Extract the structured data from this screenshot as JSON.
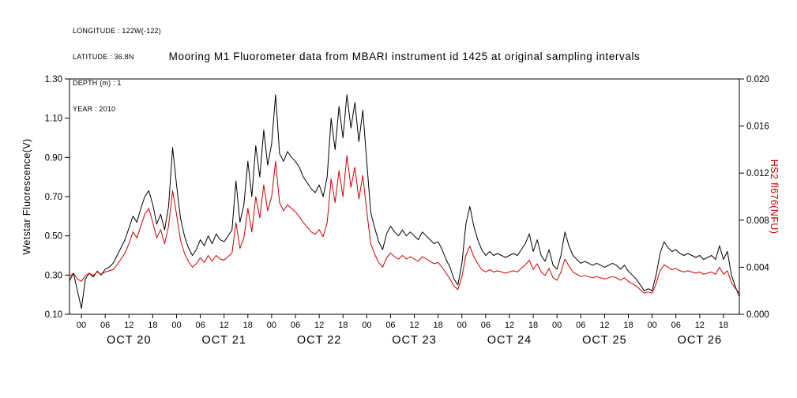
{
  "header": {
    "lines": [
      "LONGITUDE : 122W(-122)",
      "LATITUDE : 36.8N",
      "DEPTH (m) : 1",
      "YEAR : 2010"
    ]
  },
  "chart_data": {
    "type": "line",
    "title": "Mooring M1 Fluorometer data from MBARI instrument id 1425 at original sampling intervals",
    "x_axis": {
      "unit": "hours since OCT 20 00:00",
      "min": -3,
      "max": 166,
      "major_tick_step_hours": 6,
      "tick_label_cycle": [
        "00",
        "06",
        "12",
        "18"
      ],
      "first_tick_hour": 0,
      "last_tick_hour": 162,
      "day_labels": [
        {
          "label": "OCT 20",
          "hour": 12
        },
        {
          "label": "OCT 21",
          "hour": 36
        },
        {
          "label": "OCT 22",
          "hour": 60
        },
        {
          "label": "OCT 23",
          "hour": 84
        },
        {
          "label": "OCT 24",
          "hour": 108
        },
        {
          "label": "OCT 25",
          "hour": 132
        },
        {
          "label": "OCT 26",
          "hour": 156
        }
      ]
    },
    "y_left": {
      "label": "Wetstar Fluorescence(V)",
      "min": 0.1,
      "max": 1.3,
      "ticks": [
        "1.30",
        "1.10",
        "0.90",
        "0.70",
        "0.50",
        "0.30",
        "0.10"
      ],
      "color": "#000000"
    },
    "y_right": {
      "label": "HS2 fl676(NFU)",
      "min": 0.0,
      "max": 0.02,
      "ticks": [
        "0.020",
        "0.016",
        "0.012",
        "0.008",
        "0.004",
        "0.000"
      ],
      "color": "#cc0000"
    },
    "grid": false,
    "legend": "none",
    "series": [
      {
        "name": "Wetstar Fluorescence (V)",
        "axis": "left",
        "color": "#000000",
        "x_start_hour": -3,
        "x_step_hours": 1,
        "values": [
          0.27,
          0.31,
          0.22,
          0.13,
          0.28,
          0.31,
          0.29,
          0.32,
          0.3,
          0.33,
          0.34,
          0.36,
          0.4,
          0.44,
          0.48,
          0.54,
          0.6,
          0.57,
          0.64,
          0.7,
          0.73,
          0.66,
          0.56,
          0.61,
          0.53,
          0.65,
          0.95,
          0.76,
          0.59,
          0.5,
          0.44,
          0.4,
          0.43,
          0.48,
          0.45,
          0.5,
          0.46,
          0.51,
          0.48,
          0.47,
          0.5,
          0.53,
          0.78,
          0.57,
          0.66,
          0.88,
          0.7,
          0.96,
          0.8,
          1.04,
          0.86,
          0.97,
          1.22,
          0.92,
          0.88,
          0.93,
          0.9,
          0.88,
          0.85,
          0.8,
          0.77,
          0.74,
          0.72,
          0.76,
          0.7,
          0.8,
          1.1,
          0.94,
          1.16,
          1.0,
          1.22,
          1.05,
          1.18,
          0.98,
          1.14,
          0.88,
          0.62,
          0.54,
          0.47,
          0.43,
          0.51,
          0.55,
          0.52,
          0.5,
          0.53,
          0.5,
          0.52,
          0.5,
          0.48,
          0.52,
          0.5,
          0.48,
          0.46,
          0.47,
          0.43,
          0.38,
          0.34,
          0.28,
          0.25,
          0.36,
          0.56,
          0.65,
          0.55,
          0.48,
          0.43,
          0.4,
          0.42,
          0.4,
          0.41,
          0.4,
          0.39,
          0.4,
          0.41,
          0.4,
          0.43,
          0.46,
          0.51,
          0.42,
          0.48,
          0.4,
          0.37,
          0.43,
          0.35,
          0.33,
          0.4,
          0.52,
          0.45,
          0.4,
          0.38,
          0.36,
          0.37,
          0.36,
          0.35,
          0.36,
          0.35,
          0.34,
          0.35,
          0.36,
          0.35,
          0.33,
          0.35,
          0.32,
          0.3,
          0.28,
          0.25,
          0.22,
          0.23,
          0.22,
          0.3,
          0.41,
          0.47,
          0.44,
          0.42,
          0.43,
          0.41,
          0.4,
          0.41,
          0.4,
          0.39,
          0.4,
          0.38,
          0.39,
          0.4,
          0.38,
          0.45,
          0.38,
          0.42,
          0.3,
          0.24,
          0.19
        ]
      },
      {
        "name": "HS2 fl676 (NFU)",
        "axis": "right",
        "color": "#cc0000",
        "x_start_hour": -3,
        "x_step_hours": 1,
        "values": [
          0.0032,
          0.0035,
          0.003,
          0.0028,
          0.0033,
          0.0035,
          0.0033,
          0.0036,
          0.0034,
          0.0036,
          0.0037,
          0.0038,
          0.0042,
          0.0047,
          0.0052,
          0.006,
          0.007,
          0.0065,
          0.0075,
          0.0085,
          0.009,
          0.0078,
          0.0065,
          0.0072,
          0.006,
          0.0075,
          0.0105,
          0.0085,
          0.0063,
          0.0052,
          0.0045,
          0.004,
          0.0043,
          0.0048,
          0.0044,
          0.005,
          0.0045,
          0.005,
          0.0047,
          0.0046,
          0.0049,
          0.0052,
          0.0078,
          0.0056,
          0.0065,
          0.009,
          0.007,
          0.01,
          0.0082,
          0.011,
          0.0088,
          0.01,
          0.013,
          0.0095,
          0.0088,
          0.0093,
          0.009,
          0.0087,
          0.0083,
          0.0078,
          0.0074,
          0.007,
          0.0068,
          0.0072,
          0.0066,
          0.0078,
          0.0115,
          0.0095,
          0.0122,
          0.01,
          0.0135,
          0.0108,
          0.0125,
          0.0098,
          0.0118,
          0.0088,
          0.006,
          0.0051,
          0.0044,
          0.004,
          0.0048,
          0.0052,
          0.0049,
          0.0047,
          0.005,
          0.0047,
          0.0049,
          0.0047,
          0.0045,
          0.0049,
          0.0047,
          0.0045,
          0.0043,
          0.0044,
          0.004,
          0.0035,
          0.003,
          0.0024,
          0.0021,
          0.0032,
          0.005,
          0.0058,
          0.0049,
          0.0043,
          0.0038,
          0.0036,
          0.0038,
          0.0036,
          0.0037,
          0.0036,
          0.0035,
          0.0036,
          0.0037,
          0.0036,
          0.0039,
          0.0042,
          0.0046,
          0.0038,
          0.0043,
          0.0036,
          0.0033,
          0.0039,
          0.0031,
          0.0029,
          0.0036,
          0.0047,
          0.0041,
          0.0036,
          0.0034,
          0.0032,
          0.0033,
          0.0032,
          0.0031,
          0.0032,
          0.0031,
          0.003,
          0.0031,
          0.0032,
          0.0031,
          0.0029,
          0.0031,
          0.0028,
          0.0026,
          0.0024,
          0.0021,
          0.0018,
          0.0019,
          0.0018,
          0.0026,
          0.0037,
          0.0042,
          0.004,
          0.0038,
          0.0039,
          0.0037,
          0.0036,
          0.0037,
          0.0036,
          0.0035,
          0.0036,
          0.0034,
          0.0035,
          0.0036,
          0.0034,
          0.004,
          0.0034,
          0.0037,
          0.0027,
          0.0022,
          0.0018
        ]
      }
    ]
  }
}
